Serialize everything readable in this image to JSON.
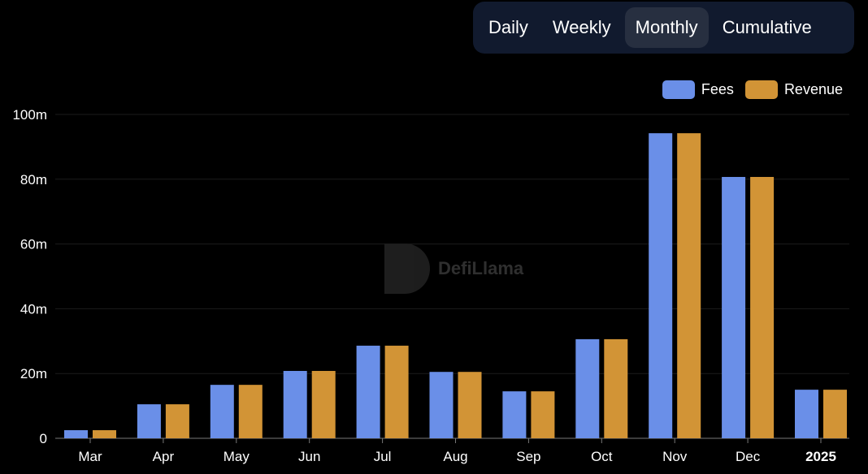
{
  "toggle": {
    "options": [
      "Daily",
      "Weekly",
      "Monthly",
      "Cumulative"
    ],
    "selected": "Monthly"
  },
  "watermark": "DefiLlama",
  "chart_data": {
    "type": "bar",
    "categories": [
      "Mar",
      "Apr",
      "May",
      "Jun",
      "Jul",
      "Aug",
      "Sep",
      "Oct",
      "Nov",
      "Dec",
      "2025"
    ],
    "series": [
      {
        "name": "Fees",
        "color": "#6a8fe8",
        "values": [
          2.5,
          10.5,
          16.5,
          20.8,
          28.6,
          20.5,
          14.5,
          30.6,
          94.2,
          80.7,
          15
        ]
      },
      {
        "name": "Revenue",
        "color": "#d29436",
        "values": [
          2.5,
          10.5,
          16.5,
          20.8,
          28.6,
          20.5,
          14.5,
          30.6,
          94.2,
          80.7,
          15
        ]
      }
    ],
    "unit": "m",
    "yticks": [
      "0",
      "20m",
      "40m",
      "60m",
      "80m",
      "100m"
    ],
    "ylim": [
      0,
      100
    ],
    "legend": "top-right",
    "grid": true
  }
}
